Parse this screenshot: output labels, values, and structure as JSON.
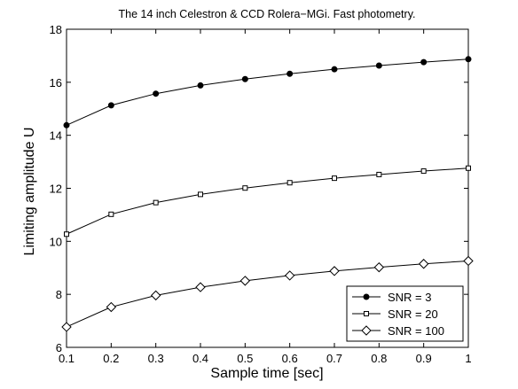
{
  "chart_data": {
    "type": "line",
    "title": "The 14 inch Celestron & CCD Rolera−MGi. Fast photometry.",
    "xlabel": "Sample time [sec]",
    "ylabel": "Limiting amplitude U",
    "xlim": [
      0.1,
      1.0
    ],
    "ylim": [
      6,
      18
    ],
    "xticks": [
      0.1,
      0.2,
      0.3,
      0.4,
      0.5,
      0.6,
      0.7,
      0.8,
      0.9,
      1.0
    ],
    "xtick_labels": [
      "0.1",
      "0.2",
      "0.3",
      "0.4",
      "0.5",
      "0.6",
      "0.7",
      "0.8",
      "0.9",
      "1"
    ],
    "yticks": [
      6,
      8,
      10,
      12,
      14,
      16,
      18
    ],
    "ytick_labels": [
      "6",
      "8",
      "10",
      "12",
      "14",
      "16",
      "18"
    ],
    "grid": false,
    "legend_position": "bottom-right",
    "x": [
      0.1,
      0.2,
      0.3,
      0.4,
      0.5,
      0.6,
      0.7,
      0.8,
      0.9,
      1.0
    ],
    "series": [
      {
        "name": "SNR = 3",
        "marker": "filled-circle",
        "color": "#000000",
        "values": [
          14.38,
          15.13,
          15.57,
          15.88,
          16.12,
          16.32,
          16.49,
          16.63,
          16.76,
          16.87
        ]
      },
      {
        "name": "SNR = 20",
        "marker": "square",
        "color": "#000000",
        "values": [
          10.27,
          11.02,
          11.46,
          11.77,
          12.01,
          12.21,
          12.38,
          12.52,
          12.65,
          12.76
        ]
      },
      {
        "name": "SNR = 100",
        "marker": "diamond",
        "color": "#000000",
        "values": [
          6.77,
          7.52,
          7.96,
          8.27,
          8.51,
          8.71,
          8.88,
          9.02,
          9.15,
          9.26
        ]
      }
    ]
  }
}
